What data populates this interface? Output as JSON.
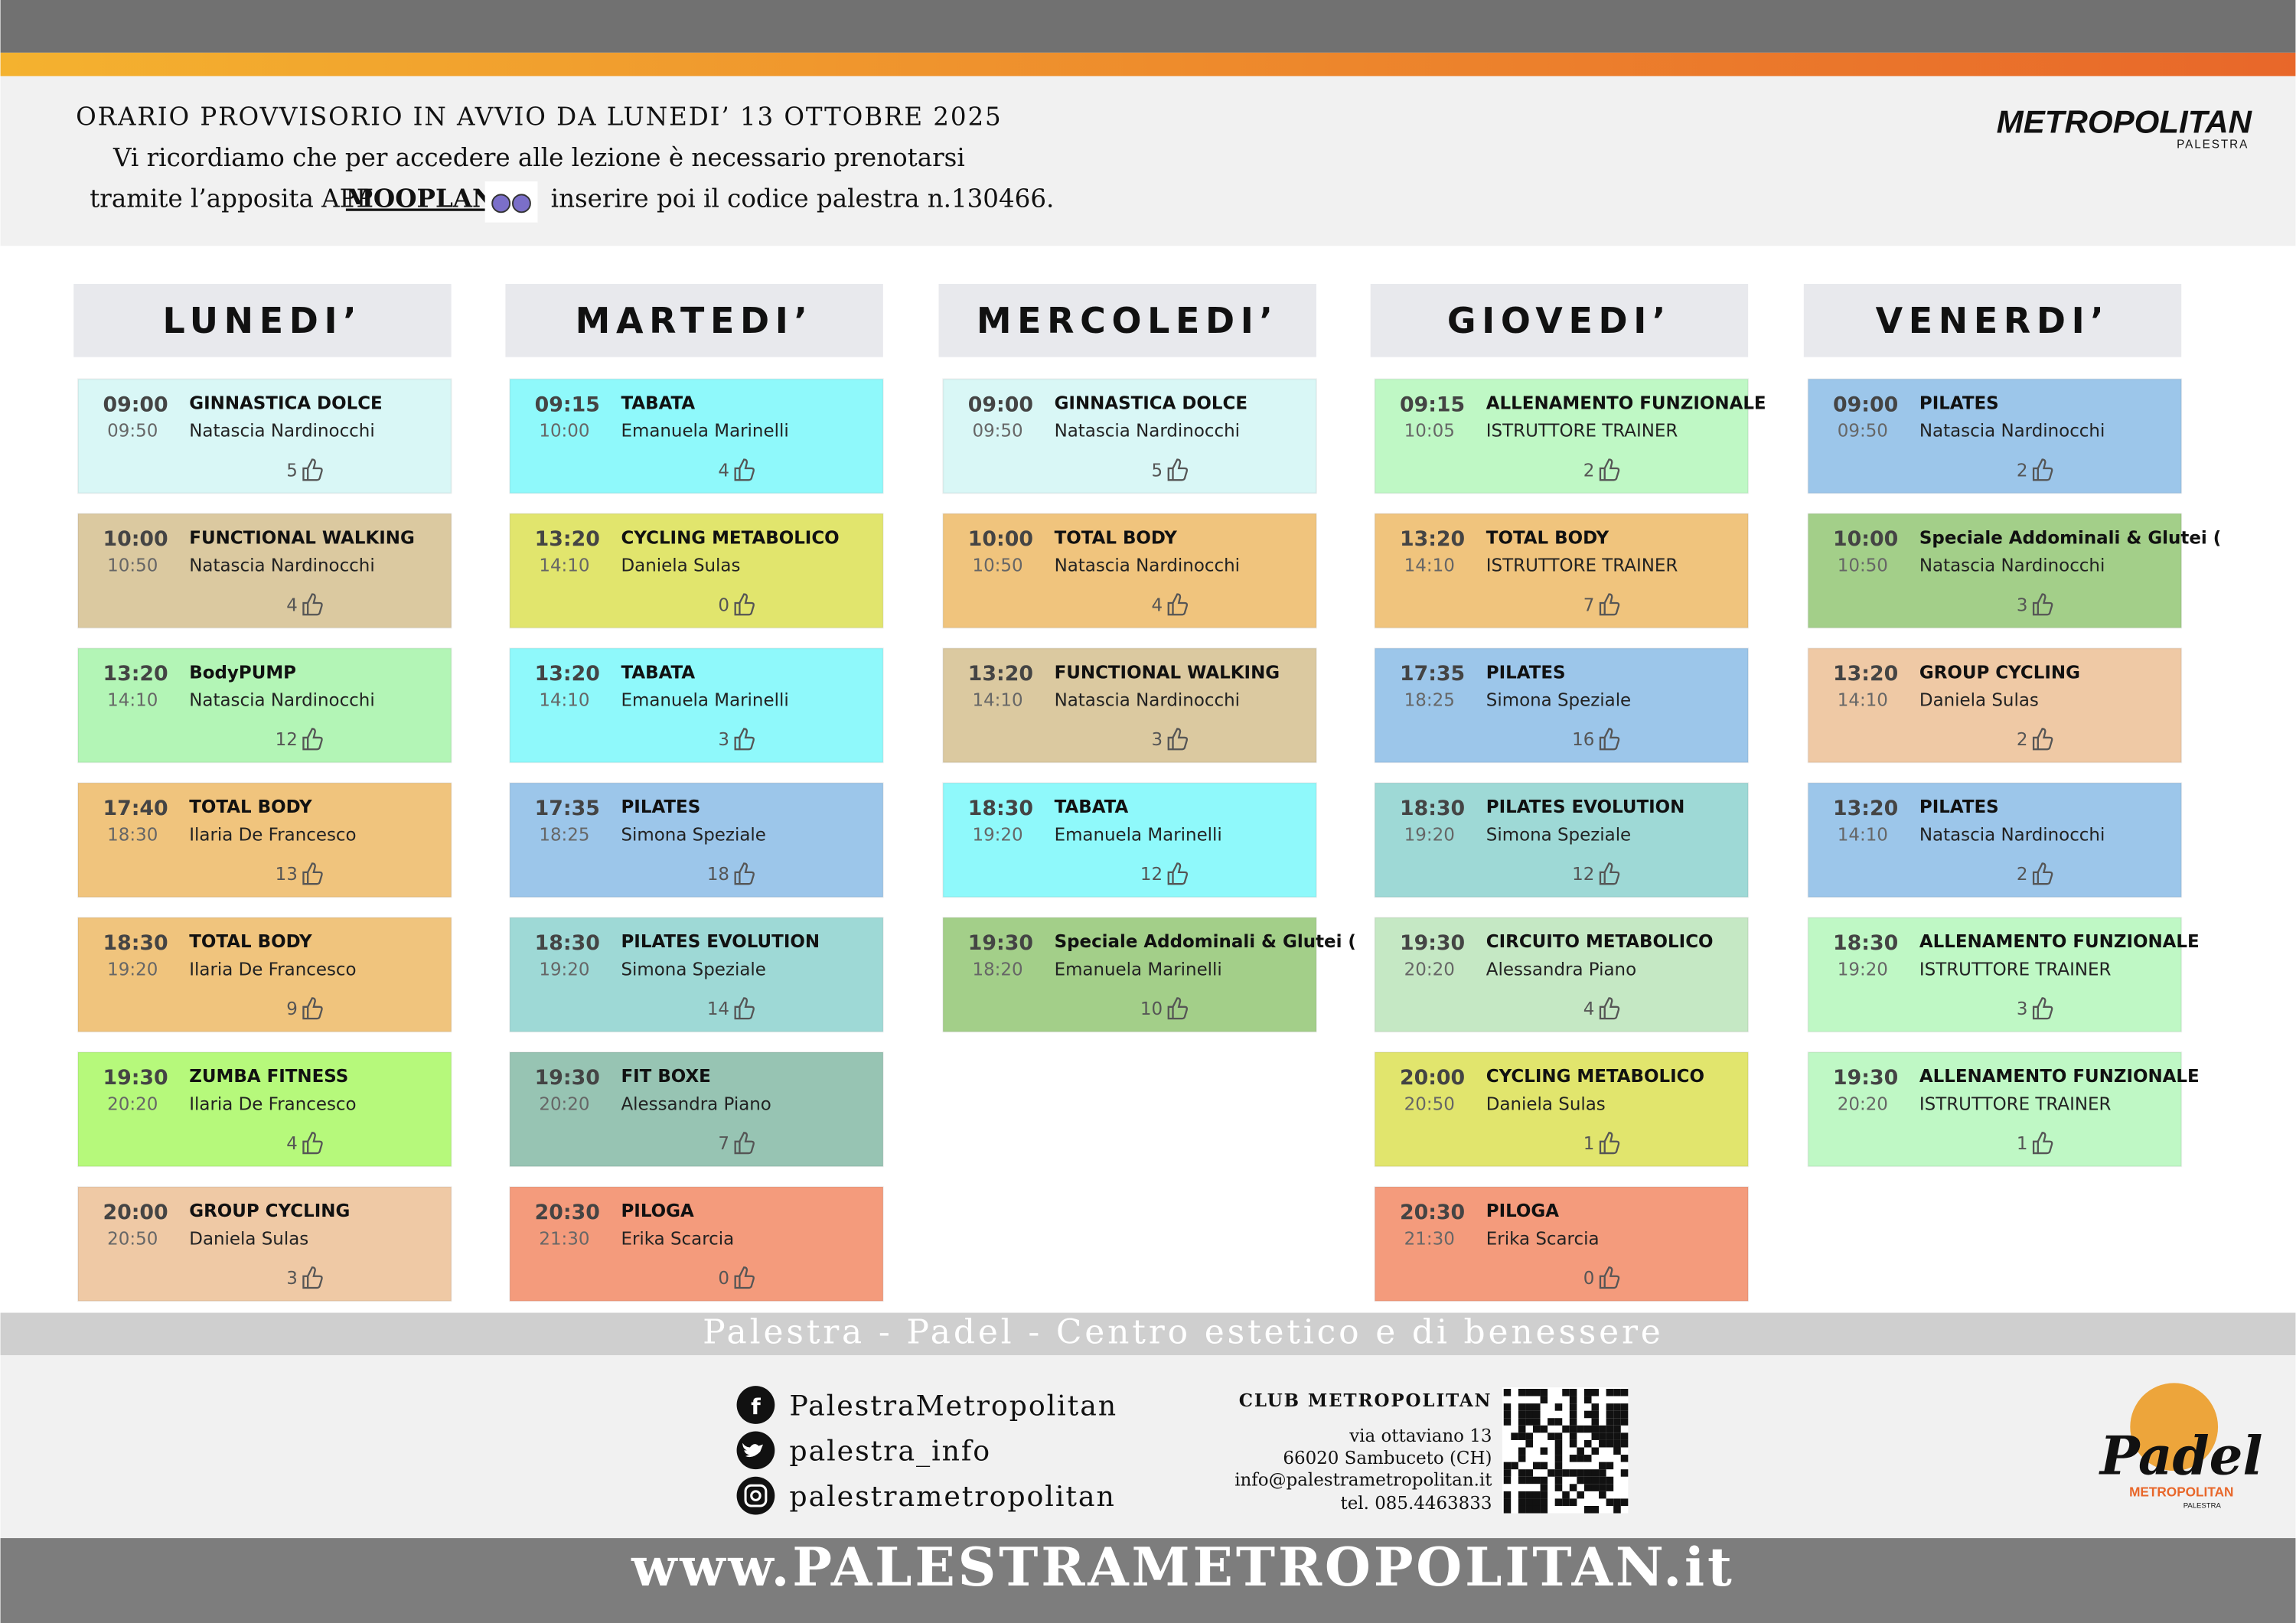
{
  "header": {
    "line1": "ORARIO PROVVISORIO IN AVVIO DA LUNEDI’ 13 OTTOBRE 2025",
    "line2": "Vi ricordiamo che per accedere alle lezione è necessario prenotarsi",
    "line3a": "tramite l’apposita APP",
    "app": "MOOPLAN",
    "line3b": "inserire poi il codice palestra n.130466."
  },
  "logo": {
    "name": "METROPOLITAN",
    "sub": "PALESTRA"
  },
  "days": [
    {
      "name": "LUNEDI’",
      "classes": [
        {
          "start": "09:00",
          "end": "09:50",
          "name": "GINNASTICA DOLCE",
          "instructor": "Natascia Nardinocchi",
          "likes": 5,
          "color": "#d9f7f6"
        },
        {
          "start": "10:00",
          "end": "10:50",
          "name": "FUNCTIONAL WALKING",
          "instructor": "Natascia Nardinocchi",
          "likes": 4,
          "color": "#dbc9a0"
        },
        {
          "start": "13:20",
          "end": "14:10",
          "name": "BodyPUMP",
          "instructor": "Natascia Nardinocchi",
          "likes": 12,
          "color": "#b3f5b6"
        },
        {
          "start": "17:40",
          "end": "18:30",
          "name": "TOTAL BODY",
          "instructor": "Ilaria De Francesco",
          "likes": 13,
          "color": "#f0c47d"
        },
        {
          "start": "18:30",
          "end": "19:20",
          "name": "TOTAL BODY",
          "instructor": "Ilaria De Francesco",
          "likes": 9,
          "color": "#f0c47d"
        },
        {
          "start": "19:30",
          "end": "20:20",
          "name": "ZUMBA FITNESS",
          "instructor": "Ilaria De Francesco",
          "likes": 4,
          "color": "#b6f97b"
        },
        {
          "start": "20:00",
          "end": "20:50",
          "name": "GROUP CYCLING",
          "instructor": "Daniela Sulas",
          "likes": 3,
          "color": "#efc9a5"
        }
      ]
    },
    {
      "name": "MARTEDI’",
      "classes": [
        {
          "start": "09:15",
          "end": "10:00",
          "name": "TABATA",
          "instructor": "Emanuela Marinelli",
          "likes": 4,
          "color": "#8ff9fb"
        },
        {
          "start": "13:20",
          "end": "14:10",
          "name": "CYCLING METABOLICO",
          "instructor": "Daniela Sulas",
          "likes": 0,
          "color": "#e1e56d"
        },
        {
          "start": "13:20",
          "end": "14:10",
          "name": "TABATA",
          "instructor": "Emanuela Marinelli",
          "likes": 3,
          "color": "#8ff9fb"
        },
        {
          "start": "17:35",
          "end": "18:25",
          "name": "PILATES",
          "instructor": "Simona Speziale",
          "likes": 18,
          "color": "#9cc6ea"
        },
        {
          "start": "18:30",
          "end": "19:20",
          "name": "PILATES EVOLUTION",
          "instructor": "Simona Speziale",
          "likes": 14,
          "color": "#9ed9d6"
        },
        {
          "start": "19:30",
          "end": "20:20",
          "name": "FIT BOXE",
          "instructor": "Alessandra Piano",
          "likes": 7,
          "color": "#97c4b3"
        },
        {
          "start": "20:30",
          "end": "21:30",
          "name": "PILOGA",
          "instructor": "Erika Scarcia",
          "likes": 0,
          "color": "#f49b7c"
        }
      ]
    },
    {
      "name": "MERCOLEDI’",
      "classes": [
        {
          "start": "09:00",
          "end": "09:50",
          "name": "GINNASTICA DOLCE",
          "instructor": "Natascia Nardinocchi",
          "likes": 5,
          "color": "#d9f7f6"
        },
        {
          "start": "10:00",
          "end": "10:50",
          "name": "TOTAL BODY",
          "instructor": "Natascia Nardinocchi",
          "likes": 4,
          "color": "#f0c47d"
        },
        {
          "start": "13:20",
          "end": "14:10",
          "name": "FUNCTIONAL WALKING",
          "instructor": "Natascia Nardinocchi",
          "likes": 3,
          "color": "#dbc9a0"
        },
        {
          "start": "18:30",
          "end": "19:20",
          "name": "TABATA",
          "instructor": "Emanuela Marinelli",
          "likes": 12,
          "color": "#8ff9fb"
        },
        {
          "start": "19:30",
          "end": "18:20",
          "name": "Speciale Addominali & Glutei (",
          "instructor": "Emanuela Marinelli",
          "likes": 10,
          "color": "#a3cf89"
        }
      ]
    },
    {
      "name": "GIOVEDI’",
      "classes": [
        {
          "start": "09:15",
          "end": "10:05",
          "name": "ALLENAMENTO FUNZIONALE",
          "instructor": "ISTRUTTORE TRAINER",
          "likes": 2,
          "color": "#bff8c5"
        },
        {
          "start": "13:20",
          "end": "14:10",
          "name": "TOTAL BODY",
          "instructor": "ISTRUTTORE TRAINER",
          "likes": 7,
          "color": "#f0c47d"
        },
        {
          "start": "17:35",
          "end": "18:25",
          "name": "PILATES",
          "instructor": "Simona Speziale",
          "likes": 16,
          "color": "#9cc6ea"
        },
        {
          "start": "18:30",
          "end": "19:20",
          "name": "PILATES EVOLUTION",
          "instructor": "Simona Speziale",
          "likes": 12,
          "color": "#9ed9d6"
        },
        {
          "start": "19:30",
          "end": "20:20",
          "name": "CIRCUITO METABOLICO",
          "instructor": "Alessandra Piano",
          "likes": 4,
          "color": "#c5e8c4"
        },
        {
          "start": "20:00",
          "end": "20:50",
          "name": "CYCLING METABOLICO",
          "instructor": "Daniela Sulas",
          "likes": 1,
          "color": "#e1e56d"
        },
        {
          "start": "20:30",
          "end": "21:30",
          "name": "PILOGA",
          "instructor": "Erika Scarcia",
          "likes": 0,
          "color": "#f49b7c"
        }
      ]
    },
    {
      "name": "VENERDI’",
      "classes": [
        {
          "start": "09:00",
          "end": "09:50",
          "name": "PILATES",
          "instructor": "Natascia Nardinocchi",
          "likes": 2,
          "color": "#9cc6ea"
        },
        {
          "start": "10:00",
          "end": "10:50",
          "name": "Speciale Addominali & Glutei (",
          "instructor": "Natascia Nardinocchi",
          "likes": 3,
          "color": "#a3cf89"
        },
        {
          "start": "13:20",
          "end": "14:10",
          "name": "GROUP CYCLING",
          "instructor": "Daniela Sulas",
          "likes": 2,
          "color": "#efc9a5"
        },
        {
          "start": "13:20",
          "end": "14:10",
          "name": "PILATES",
          "instructor": "Natascia Nardinocchi",
          "likes": 2,
          "color": "#9cc6ea"
        },
        {
          "start": "18:30",
          "end": "19:20",
          "name": "ALLENAMENTO FUNZIONALE",
          "instructor": "ISTRUTTORE TRAINER",
          "likes": 3,
          "color": "#bff8c5"
        },
        {
          "start": "19:30",
          "end": "20:20",
          "name": "ALLENAMENTO FUNZIONALE",
          "instructor": "ISTRUTTORE TRAINER",
          "likes": 1,
          "color": "#bff8c5"
        }
      ]
    }
  ],
  "footer": {
    "tagline": "Palestra - Padel - Centro estetico e di benessere",
    "social": [
      "PalestraMetropolitan",
      "palestra_info",
      "palestrametropolitan"
    ],
    "club": {
      "title": "CLUB METROPOLITAN",
      "lines": [
        "via ottaviano 13",
        "66020 Sambuceto (CH)",
        "info@palestrametropolitan.it",
        "tel. 085.4463833"
      ]
    },
    "padel": {
      "name": "Padel",
      "brand": "METROPOLITAN",
      "sub": "PALESTRA"
    },
    "website": "www.PALESTRAMETROPOLITAN.it"
  }
}
